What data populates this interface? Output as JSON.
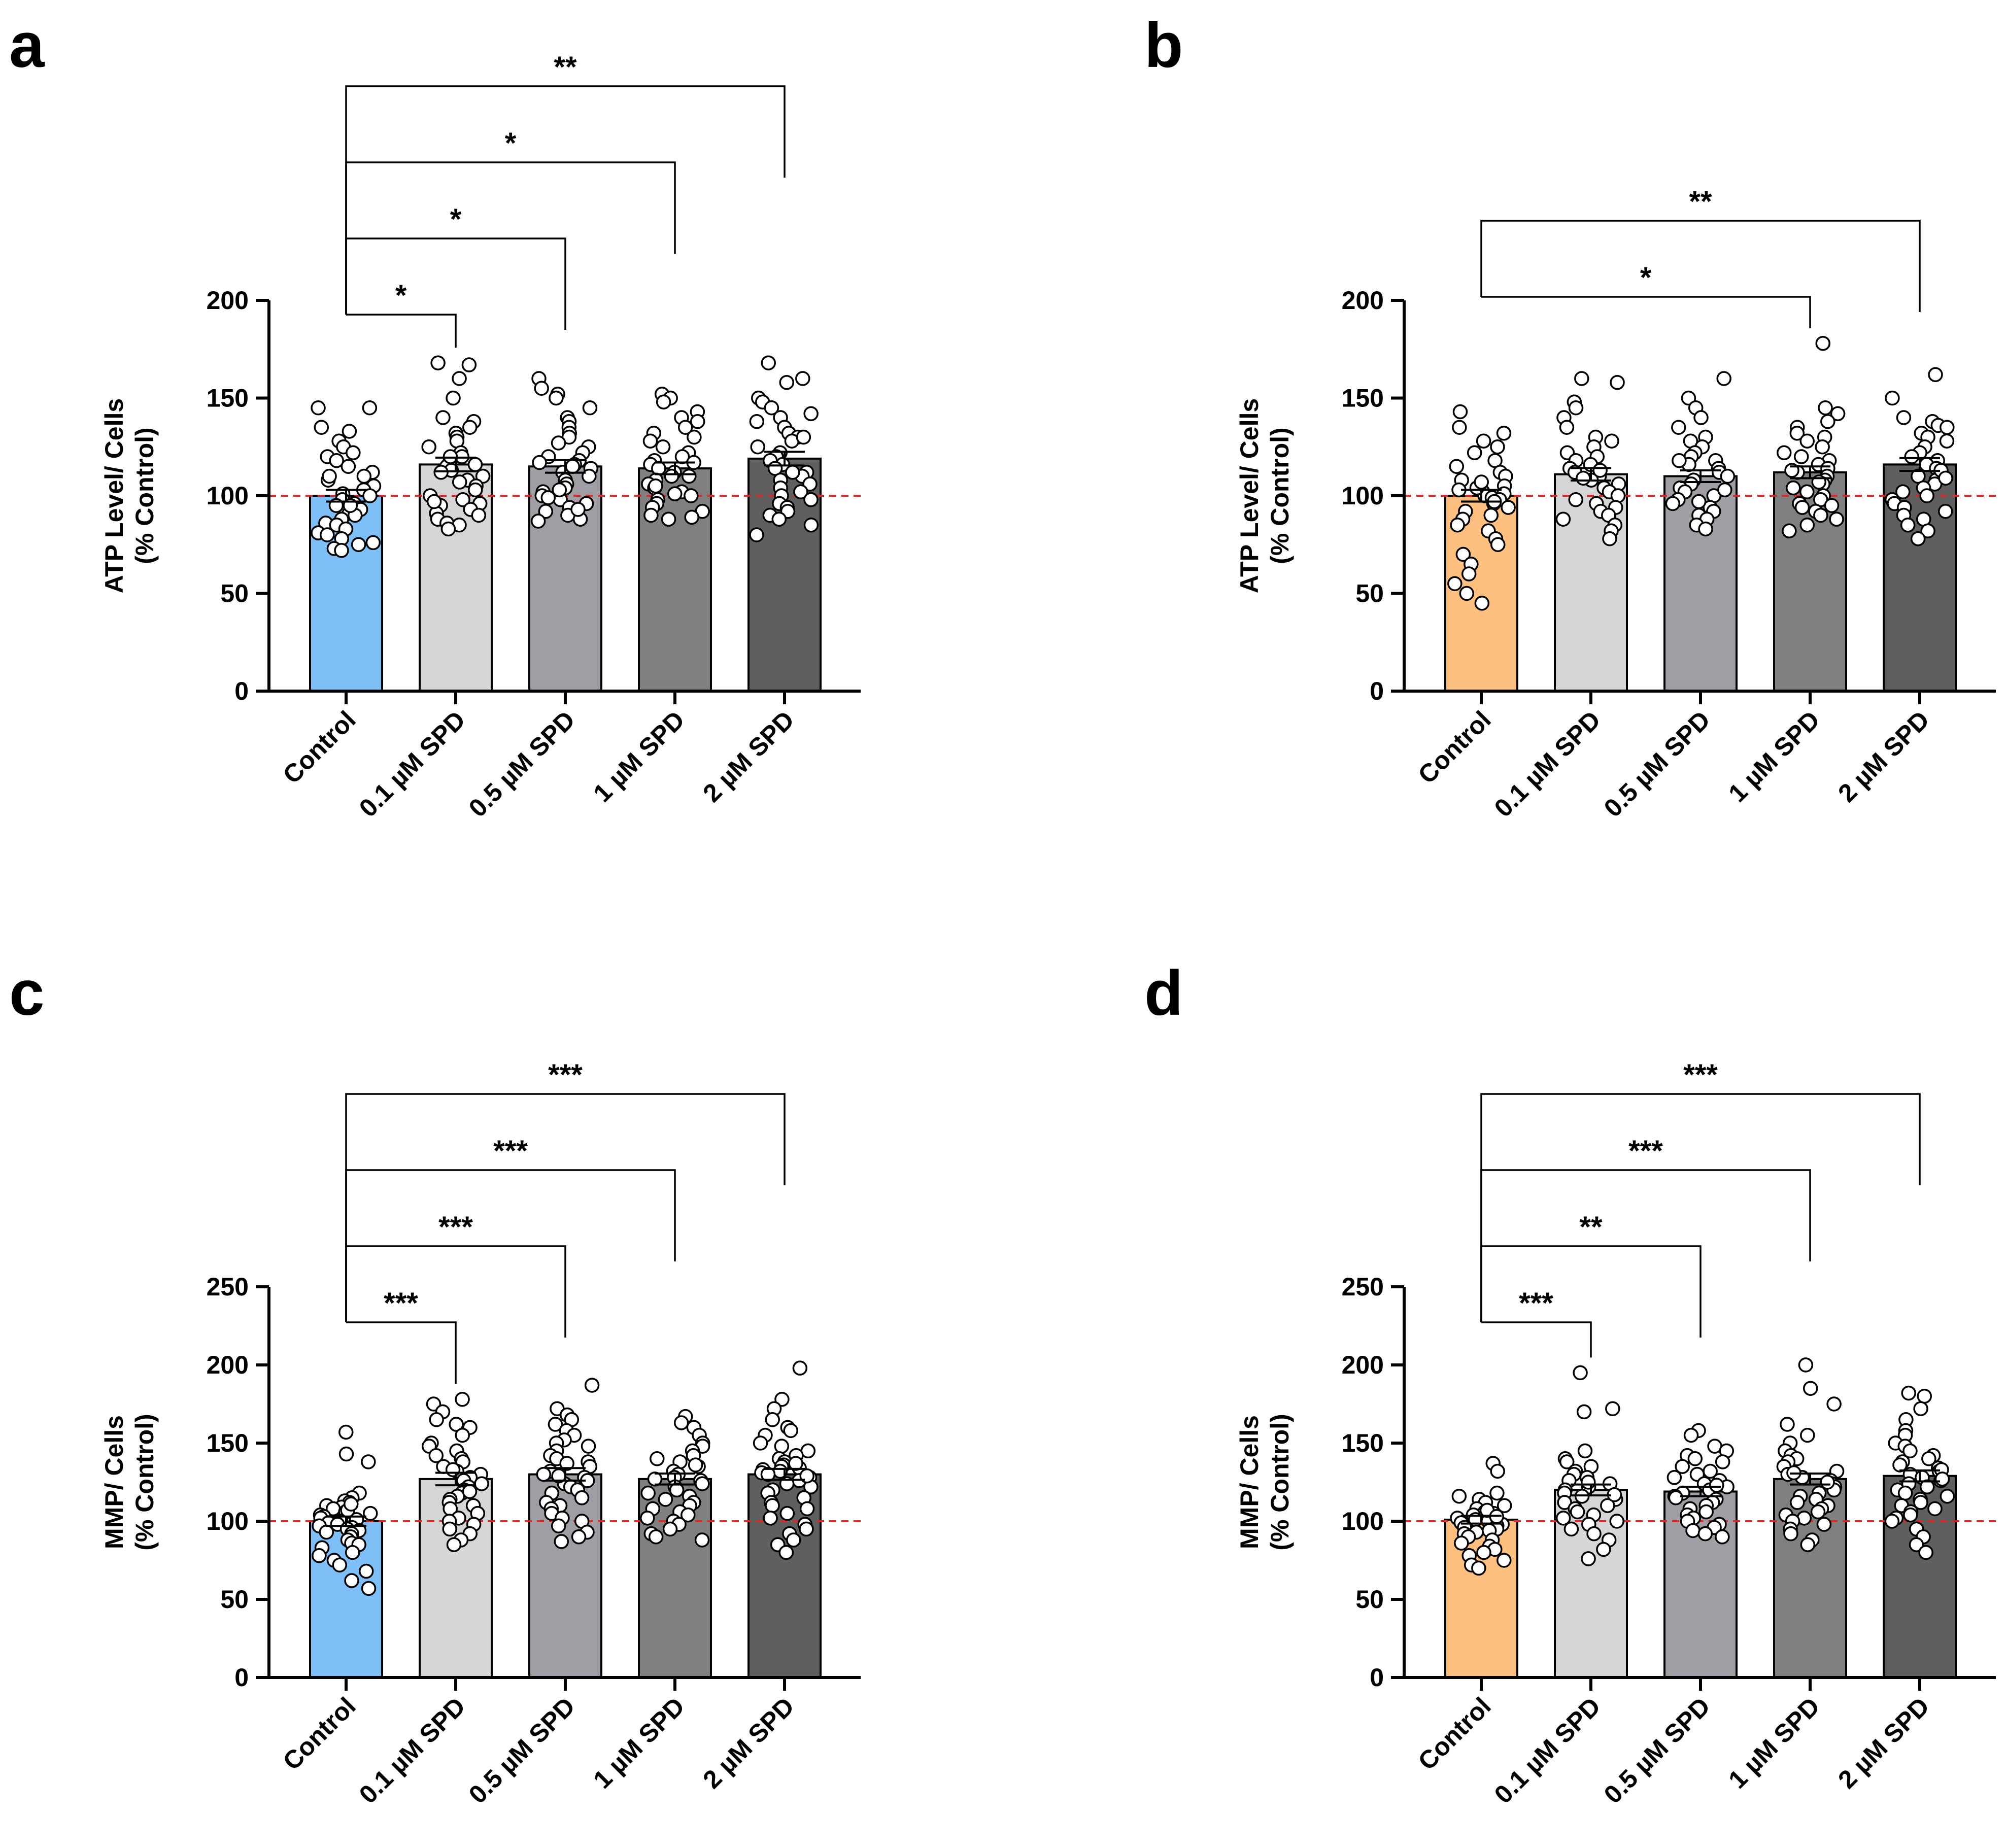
{
  "chart_data": [
    {
      "panel": "a",
      "type": "bar",
      "ylabel_line1": "ATP Level/ Cells",
      "ylabel_line2": "(% Control)",
      "ylim": [
        0,
        200
      ],
      "yticks": [
        0,
        50,
        100,
        150,
        200
      ],
      "yticks_text": [
        "0",
        "50",
        "100",
        "150",
        "200"
      ],
      "reference_line": 100,
      "categories": [
        "Control",
        "0.1 µM SPD",
        "0.5 µM SPD",
        "1 µM SPD",
        "2 µM SPD"
      ],
      "values": [
        100,
        116,
        115,
        114,
        119
      ],
      "sem": [
        3,
        3.5,
        3.2,
        3,
        3.5
      ],
      "bar_colors": [
        "#7dbff6",
        "#d6d6d6",
        "#a09ea4",
        "#808080",
        "#5f5f5f"
      ],
      "points": [
        [
          145,
          145,
          135,
          133,
          128,
          125,
          122,
          120,
          118,
          115,
          112,
          110,
          108,
          105,
          103,
          101,
          100,
          98,
          96,
          95,
          93,
          91,
          90,
          88,
          86,
          85,
          83,
          81,
          80,
          78,
          76,
          75,
          73,
          72,
          110,
          95
        ],
        [
          168,
          167,
          160,
          150,
          140,
          138,
          135,
          132,
          130,
          128,
          125,
          122,
          120,
          118,
          116,
          115,
          113,
          112,
          110,
          108,
          105,
          103,
          100,
          98,
          96,
          95,
          93,
          91,
          90,
          88,
          86,
          85,
          83,
          120,
          107,
          97
        ],
        [
          160,
          155,
          152,
          150,
          145,
          140,
          138,
          135,
          132,
          130,
          127,
          125,
          122,
          120,
          118,
          116,
          114,
          112,
          110,
          108,
          106,
          104,
          102,
          100,
          98,
          96,
          94,
          92,
          90,
          88,
          87,
          115,
          117,
          103,
          99,
          93
        ],
        [
          152,
          150,
          148,
          143,
          140,
          138,
          135,
          132,
          130,
          128,
          125,
          122,
          120,
          118,
          116,
          114,
          112,
          110,
          108,
          106,
          104,
          102,
          100,
          98,
          96,
          94,
          92,
          90,
          89,
          88,
          110,
          117,
          101,
          105
        ],
        [
          168,
          160,
          158,
          150,
          148,
          145,
          142,
          140,
          138,
          135,
          132,
          130,
          128,
          125,
          122,
          120,
          118,
          116,
          114,
          112,
          110,
          108,
          106,
          104,
          102,
          100,
          98,
          96,
          94,
          92,
          90,
          88,
          85,
          80,
          130,
          112
        ]
      ],
      "comparisons": [
        {
          "from": 0,
          "to": 1,
          "label": "*"
        },
        {
          "from": 0,
          "to": 2,
          "label": "*"
        },
        {
          "from": 0,
          "to": 3,
          "label": "*"
        },
        {
          "from": 0,
          "to": 4,
          "label": "**"
        }
      ]
    },
    {
      "panel": "b",
      "type": "bar",
      "ylabel_line1": "ATP Level/ Cells",
      "ylabel_line2": "(% Control)",
      "ylim": [
        0,
        200
      ],
      "yticks": [
        0,
        50,
        100,
        150,
        200
      ],
      "yticks_text": [
        "0",
        "50",
        "100",
        "150",
        "200"
      ],
      "reference_line": 100,
      "categories": [
        "Control",
        "0.1 µM SPD",
        "0.5 µM SPD",
        "1 µM SPD",
        "2 µM SPD"
      ],
      "values": [
        100,
        111,
        110,
        112,
        116
      ],
      "sem": [
        3,
        3.2,
        3,
        3,
        3.3
      ],
      "bar_colors": [
        "#fdc080",
        "#d6d6d6",
        "#a09ea4",
        "#808080",
        "#5f5f5f"
      ],
      "points": [
        [
          143,
          135,
          132,
          128,
          125,
          122,
          118,
          115,
          112,
          110,
          108,
          105,
          103,
          102,
          101,
          100,
          99,
          98,
          96,
          94,
          92,
          90,
          88,
          85,
          82,
          78,
          75,
          70,
          65,
          60,
          55,
          50,
          45,
          104,
          107,
          97
        ],
        [
          160,
          158,
          148,
          145,
          140,
          135,
          130,
          128,
          125,
          122,
          120,
          118,
          116,
          114,
          112,
          110,
          108,
          106,
          104,
          102,
          100,
          98,
          96,
          94,
          92,
          90,
          88,
          85,
          82,
          78,
          113,
          109
        ],
        [
          160,
          150,
          145,
          140,
          135,
          130,
          128,
          125,
          122,
          120,
          118,
          116,
          114,
          112,
          110,
          108,
          106,
          104,
          102,
          100,
          98,
          96,
          94,
          92,
          90,
          88,
          85,
          83,
          118,
          103,
          97
        ],
        [
          178,
          145,
          142,
          138,
          135,
          132,
          130,
          128,
          125,
          122,
          120,
          118,
          116,
          114,
          112,
          110,
          108,
          106,
          104,
          102,
          100,
          98,
          96,
          94,
          92,
          90,
          88,
          85,
          82,
          113,
          107,
          95
        ],
        [
          162,
          150,
          140,
          138,
          136,
          135,
          132,
          130,
          128,
          125,
          122,
          120,
          118,
          116,
          114,
          112,
          110,
          108,
          106,
          104,
          102,
          100,
          98,
          96,
          94,
          92,
          90,
          88,
          85,
          82,
          78,
          113,
          109
        ]
      ],
      "comparisons": [
        {
          "from": 0,
          "to": 3,
          "label": "*"
        },
        {
          "from": 0,
          "to": 4,
          "label": "**"
        }
      ]
    },
    {
      "panel": "c",
      "type": "bar",
      "ylabel_line1": "MMP/ Cells",
      "ylabel_line2": "(% Control)",
      "ylim": [
        0,
        250
      ],
      "yticks": [
        0,
        50,
        100,
        150,
        200,
        250
      ],
      "yticks_text": [
        "0",
        "50",
        "100",
        "150",
        "200",
        "250"
      ],
      "reference_line": 100,
      "categories": [
        "Control",
        "0.1 µM SPD",
        "0.5 µM SPD",
        "1 µM SPD",
        "2 µM SPD"
      ],
      "values": [
        100,
        127,
        130,
        127,
        130
      ],
      "sem": [
        3,
        4,
        4,
        3.5,
        3.5
      ],
      "bar_colors": [
        "#7dbff6",
        "#d6d6d6",
        "#a09ea4",
        "#808080",
        "#5f5f5f"
      ],
      "points": [
        [
          157,
          143,
          138,
          118,
          115,
          113,
          112,
          110,
          109,
          108,
          106,
          105,
          104,
          103,
          102,
          101,
          100,
          99,
          98,
          97,
          96,
          95,
          94,
          93,
          92,
          90,
          88,
          86,
          85,
          83,
          80,
          78,
          75,
          72,
          68,
          62,
          57,
          107,
          111
        ],
        [
          178,
          175,
          170,
          165,
          162,
          160,
          155,
          150,
          148,
          145,
          142,
          140,
          138,
          135,
          132,
          130,
          128,
          126,
          124,
          122,
          120,
          118,
          116,
          114,
          112,
          110,
          108,
          105,
          102,
          100,
          98,
          95,
          92,
          88,
          85,
          133,
          119
        ],
        [
          187,
          172,
          168,
          165,
          162,
          158,
          155,
          152,
          150,
          148,
          145,
          142,
          140,
          138,
          135,
          132,
          130,
          128,
          126,
          124,
          122,
          120,
          118,
          115,
          112,
          110,
          108,
          105,
          102,
          100,
          97,
          93,
          90,
          87,
          137,
          129
        ],
        [
          167,
          163,
          160,
          155,
          150,
          148,
          145,
          142,
          140,
          138,
          135,
          132,
          130,
          128,
          126,
          124,
          122,
          120,
          118,
          116,
          114,
          112,
          110,
          108,
          106,
          104,
          102,
          100,
          98,
          95,
          92,
          90,
          88,
          136,
          127
        ],
        [
          198,
          178,
          172,
          165,
          160,
          158,
          155,
          150,
          148,
          145,
          142,
          140,
          138,
          136,
          135,
          134,
          133,
          132,
          131,
          130,
          128,
          126,
          124,
          122,
          120,
          118,
          115,
          112,
          110,
          108,
          105,
          102,
          98,
          95,
          92,
          88,
          85,
          80,
          137,
          129
        ]
      ],
      "comparisons": [
        {
          "from": 0,
          "to": 1,
          "label": "***"
        },
        {
          "from": 0,
          "to": 2,
          "label": "***"
        },
        {
          "from": 0,
          "to": 3,
          "label": "***"
        },
        {
          "from": 0,
          "to": 4,
          "label": "***"
        }
      ]
    },
    {
      "panel": "d",
      "type": "bar",
      "ylabel_line1": "MMP/ Cells",
      "ylabel_line2": "(% Control)",
      "ylim": [
        0,
        250
      ],
      "yticks": [
        0,
        50,
        100,
        150,
        200,
        250
      ],
      "yticks_text": [
        "0",
        "50",
        "100",
        "150",
        "200",
        "250"
      ],
      "reference_line": 100,
      "categories": [
        "Control",
        "0.1 µM SPD",
        "0.5 µM SPD",
        "1 µM SPD",
        "2 µM SPD"
      ],
      "values": [
        101,
        120,
        119,
        127,
        129
      ],
      "sem": [
        2.5,
        3.5,
        3,
        3.5,
        3.5
      ],
      "bar_colors": [
        "#fdc080",
        "#d6d6d6",
        "#a09ea4",
        "#808080",
        "#5f5f5f"
      ],
      "points": [
        [
          137,
          132,
          118,
          116,
          114,
          112,
          110,
          108,
          106,
          105,
          104,
          103,
          102,
          101,
          100,
          99,
          98,
          97,
          96,
          95,
          94,
          93,
          92,
          90,
          88,
          86,
          84,
          82,
          80,
          78,
          75,
          72,
          70,
          107,
          103
        ],
        [
          195,
          172,
          170,
          145,
          140,
          138,
          135,
          132,
          130,
          128,
          126,
          124,
          122,
          120,
          118,
          116,
          114,
          112,
          110,
          108,
          106,
          104,
          102,
          100,
          98,
          95,
          92,
          88,
          82,
          76,
          125,
          117
        ],
        [
          158,
          155,
          148,
          145,
          142,
          140,
          138,
          135,
          132,
          130,
          128,
          126,
          124,
          122,
          120,
          118,
          116,
          114,
          112,
          110,
          108,
          106,
          104,
          102,
          100,
          98,
          96,
          94,
          92,
          90,
          123,
          115
        ],
        [
          200,
          185,
          175,
          162,
          155,
          150,
          145,
          142,
          140,
          138,
          135,
          132,
          130,
          128,
          126,
          124,
          122,
          120,
          118,
          116,
          114,
          112,
          110,
          108,
          106,
          104,
          102,
          100,
          98,
          95,
          92,
          88,
          85,
          131,
          125
        ],
        [
          182,
          180,
          172,
          165,
          158,
          155,
          150,
          148,
          145,
          142,
          140,
          138,
          136,
          134,
          132,
          130,
          128,
          126,
          124,
          122,
          120,
          118,
          116,
          114,
          112,
          110,
          108,
          106,
          104,
          102,
          100,
          95,
          90,
          85,
          80,
          133,
          127
        ]
      ],
      "comparisons": [
        {
          "from": 0,
          "to": 1,
          "label": "***"
        },
        {
          "from": 0,
          "to": 2,
          "label": "**"
        },
        {
          "from": 0,
          "to": 3,
          "label": "***"
        },
        {
          "from": 0,
          "to": 4,
          "label": "***"
        }
      ]
    }
  ]
}
